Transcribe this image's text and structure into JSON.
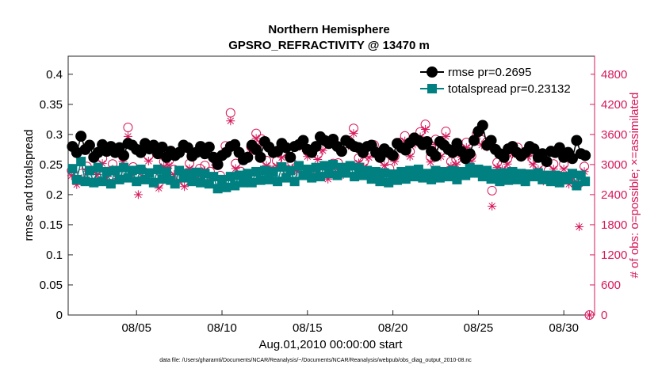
{
  "chart_data": {
    "type": "line",
    "title": "Northern Hemisphere",
    "subtitle": "GPSRO_REFRACTIVITY @ 13470 m",
    "xlabel": "Aug.01,2010 00:00:00 start",
    "ylabel": "rmse and totalspread",
    "y2label": "# of obs: o=possible; ×=assimilated",
    "footer": "data file: /Users/gharamti/Documents/NCAR/Reanalysis/~/Documents/NCAR/Reanalysis/webpub/obs_diag_output_2010-08.nc",
    "xlim": [
      1,
      31.8
    ],
    "ylim": [
      0,
      0.43
    ],
    "y2lim": [
      0,
      5160
    ],
    "x_ticks": [
      5,
      10,
      15,
      20,
      25,
      30
    ],
    "x_tick_labels": [
      "08/05",
      "08/10",
      "08/15",
      "08/20",
      "08/25",
      "08/30"
    ],
    "y_ticks": [
      0,
      0.05,
      0.1,
      0.15,
      0.2,
      0.25,
      0.3,
      0.35,
      0.4
    ],
    "y_tick_labels": [
      "0",
      "0.05",
      "0.1",
      "0.15",
      "0.2",
      "0.25",
      "0.3",
      "0.35",
      "0.4"
    ],
    "y2_ticks": [
      0,
      600,
      1200,
      1800,
      2400,
      3000,
      3600,
      4200,
      4800
    ],
    "y2_tick_labels": [
      "0",
      "600",
      "1200",
      "1800",
      "2400",
      "3000",
      "3600",
      "4200",
      "4800"
    ],
    "legend_position": "top-right",
    "colors": {
      "rmse": "#000000",
      "totalspread": "#008080",
      "obs": "#d6185b"
    },
    "series": [
      {
        "name": "rmse pr=0.2695",
        "axis": "left",
        "x": [
          1.25,
          1.5,
          1.75,
          2,
          2.25,
          2.5,
          2.75,
          3,
          3.25,
          3.5,
          3.75,
          4,
          4.25,
          4.5,
          4.75,
          5,
          5.25,
          5.5,
          5.75,
          6,
          6.25,
          6.5,
          6.75,
          7,
          7.25,
          7.5,
          7.75,
          8,
          8.25,
          8.5,
          8.75,
          9,
          9.25,
          9.5,
          9.75,
          10,
          10.25,
          10.5,
          10.75,
          11,
          11.25,
          11.5,
          11.75,
          12,
          12.25,
          12.5,
          12.75,
          13,
          13.25,
          13.5,
          13.75,
          14,
          14.25,
          14.5,
          14.75,
          15,
          15.25,
          15.5,
          15.75,
          16,
          16.25,
          16.5,
          16.75,
          17,
          17.25,
          17.5,
          17.75,
          18,
          18.25,
          18.5,
          18.75,
          19,
          19.25,
          19.5,
          19.75,
          20,
          20.25,
          20.5,
          20.75,
          21,
          21.25,
          21.5,
          21.75,
          22,
          22.25,
          22.5,
          22.75,
          23,
          23.25,
          23.5,
          23.75,
          24,
          24.25,
          24.5,
          24.75,
          25,
          25.25,
          25.5,
          25.75,
          26,
          26.25,
          26.5,
          26.75,
          27,
          27.25,
          27.5,
          27.75,
          28,
          28.25,
          28.5,
          28.75,
          29,
          29.25,
          29.5,
          29.75,
          30,
          30.25,
          30.5,
          30.75,
          31,
          31.25
        ],
        "values": [
          0.28,
          0.27,
          0.297,
          0.275,
          0.282,
          0.262,
          0.27,
          0.283,
          0.272,
          0.28,
          0.27,
          0.278,
          0.265,
          0.285,
          0.282,
          0.275,
          0.27,
          0.285,
          0.276,
          0.282,
          0.268,
          0.279,
          0.262,
          0.272,
          0.265,
          0.27,
          0.282,
          0.278,
          0.264,
          0.27,
          0.28,
          0.268,
          0.279,
          0.262,
          0.25,
          0.265,
          0.27,
          0.28,
          0.283,
          0.27,
          0.258,
          0.262,
          0.282,
          0.275,
          0.262,
          0.288,
          0.279,
          0.27,
          0.272,
          0.285,
          0.278,
          0.262,
          0.28,
          0.283,
          0.29,
          0.275,
          0.27,
          0.28,
          0.296,
          0.29,
          0.285,
          0.292,
          0.28,
          0.272,
          0.29,
          0.285,
          0.28,
          0.278,
          0.27,
          0.28,
          0.282,
          0.27,
          0.262,
          0.276,
          0.27,
          0.265,
          0.285,
          0.278,
          0.274,
          0.286,
          0.294,
          0.29,
          0.283,
          0.288,
          0.272,
          0.264,
          0.288,
          0.282,
          0.275,
          0.27,
          0.285,
          0.272,
          0.26,
          0.268,
          0.29,
          0.305,
          0.315,
          0.282,
          0.29,
          0.275,
          0.268,
          0.262,
          0.276,
          0.28,
          0.27,
          0.264,
          0.27,
          0.28,
          0.276,
          0.262,
          0.268,
          0.255,
          0.272,
          0.27,
          0.278,
          0.262,
          0.27,
          0.26,
          0.29,
          0.268,
          0.265
        ]
      },
      {
        "name": "totalspread pr=0.23132",
        "axis": "left",
        "x": [
          1.25,
          1.5,
          1.75,
          2,
          2.25,
          2.5,
          2.75,
          3,
          3.25,
          3.5,
          3.75,
          4,
          4.25,
          4.5,
          4.75,
          5,
          5.25,
          5.5,
          5.75,
          6,
          6.25,
          6.5,
          6.75,
          7,
          7.25,
          7.5,
          7.75,
          8,
          8.25,
          8.5,
          8.75,
          9,
          9.25,
          9.5,
          9.75,
          10,
          10.25,
          10.5,
          10.75,
          11,
          11.25,
          11.5,
          11.75,
          12,
          12.25,
          12.5,
          12.75,
          13,
          13.25,
          13.5,
          13.75,
          14,
          14.25,
          14.5,
          14.75,
          15,
          15.25,
          15.5,
          15.75,
          16,
          16.25,
          16.5,
          16.75,
          17,
          17.25,
          17.5,
          17.75,
          18,
          18.25,
          18.5,
          18.75,
          19,
          19.25,
          19.5,
          19.75,
          20,
          20.25,
          20.5,
          20.75,
          21,
          21.25,
          21.5,
          21.75,
          22,
          22.25,
          22.5,
          22.75,
          23,
          23.25,
          23.5,
          23.75,
          24,
          24.25,
          24.5,
          24.75,
          25,
          25.25,
          25.5,
          25.75,
          26,
          26.25,
          26.5,
          26.75,
          27,
          27.25,
          27.5,
          27.75,
          28,
          28.25,
          28.5,
          28.75,
          29,
          29.25,
          29.5,
          29.75,
          30,
          30.25,
          30.5,
          30.75,
          31,
          31.25
        ],
        "values": [
          0.243,
          0.225,
          0.255,
          0.222,
          0.24,
          0.22,
          0.245,
          0.222,
          0.238,
          0.218,
          0.24,
          0.225,
          0.245,
          0.228,
          0.24,
          0.222,
          0.242,
          0.225,
          0.236,
          0.22,
          0.242,
          0.226,
          0.238,
          0.224,
          0.218,
          0.24,
          0.228,
          0.235,
          0.222,
          0.237,
          0.22,
          0.235,
          0.218,
          0.23,
          0.21,
          0.225,
          0.212,
          0.23,
          0.215,
          0.232,
          0.22,
          0.235,
          0.22,
          0.238,
          0.224,
          0.24,
          0.225,
          0.238,
          0.222,
          0.246,
          0.228,
          0.24,
          0.222,
          0.248,
          0.232,
          0.242,
          0.228,
          0.245,
          0.23,
          0.248,
          0.235,
          0.25,
          0.232,
          0.245,
          0.236,
          0.248,
          0.23,
          0.245,
          0.232,
          0.24,
          0.226,
          0.238,
          0.222,
          0.236,
          0.22,
          0.234,
          0.224,
          0.238,
          0.226,
          0.24,
          0.23,
          0.242,
          0.228,
          0.235,
          0.225,
          0.24,
          0.228,
          0.238,
          0.23,
          0.24,
          0.225,
          0.238,
          0.232,
          0.245,
          0.236,
          0.242,
          0.23,
          0.24,
          0.226,
          0.235,
          0.222,
          0.236,
          0.224,
          0.238,
          0.225,
          0.235,
          0.222,
          0.234,
          0.23,
          0.236,
          0.225,
          0.232,
          0.222,
          0.232,
          0.22,
          0.23,
          0.225,
          0.235,
          0.215,
          0.232,
          0.222
        ]
      },
      {
        "name": "possible obs",
        "axis": "right",
        "marker": "circle",
        "x": [
          1.2,
          1.5,
          1.8,
          2.1,
          2.4,
          2.7,
          3,
          3.3,
          3.6,
          3.9,
          4.2,
          4.5,
          4.8,
          5.1,
          5.4,
          5.7,
          6,
          6.3,
          6.6,
          6.9,
          7.2,
          7.5,
          7.8,
          8.1,
          8.4,
          8.7,
          9,
          9.3,
          9.6,
          9.9,
          10.2,
          10.5,
          10.8,
          11.1,
          11.4,
          11.7,
          12,
          12.3,
          12.6,
          12.9,
          13.2,
          13.5,
          13.8,
          14.1,
          14.4,
          14.7,
          15,
          15.3,
          15.6,
          15.9,
          16.2,
          16.5,
          16.8,
          17.1,
          17.4,
          17.7,
          18,
          18.3,
          18.6,
          18.9,
          19.2,
          19.5,
          19.8,
          20.1,
          20.4,
          20.7,
          21,
          21.3,
          21.6,
          21.9,
          22.2,
          22.5,
          22.8,
          23.1,
          23.4,
          23.7,
          24,
          24.3,
          24.6,
          24.9,
          25.2,
          25.5,
          25.8,
          26.1,
          26.4,
          26.7,
          27,
          27.3,
          27.6,
          27.9,
          28.2,
          28.5,
          28.8,
          29.1,
          29.4,
          29.7,
          30,
          30.3,
          30.6,
          30.9,
          31.2,
          31.5
        ],
        "values": [
          2880,
          2700,
          2820,
          2960,
          2780,
          2900,
          3120,
          2860,
          3010,
          2820,
          3160,
          3740,
          2950,
          2780,
          2860,
          3170,
          2750,
          2630,
          3060,
          3080,
          2900,
          2780,
          2660,
          3020,
          2790,
          2920,
          2980,
          2860,
          3090,
          2780,
          3370,
          4030,
          3020,
          2860,
          2780,
          3350,
          3620,
          3510,
          3080,
          2880,
          3070,
          3240,
          2890,
          3030,
          2960,
          3440,
          3260,
          2880,
          3200,
          3380,
          2810,
          3020,
          3030,
          2900,
          3480,
          3720,
          3130,
          3050,
          3240,
          3390,
          2820,
          3080,
          2920,
          3160,
          3440,
          3570,
          3260,
          3510,
          3650,
          3800,
          3150,
          3500,
          3260,
          3660,
          3060,
          3100,
          3250,
          3440,
          3170,
          3610,
          3490,
          3450,
          2480,
          3040,
          3000,
          3110,
          3310,
          3340,
          2780,
          3260,
          3100,
          3000,
          2770,
          2880,
          3010,
          2780,
          3010,
          2710,
          2720,
          2630,
          2960,
          0
        ]
      },
      {
        "name": "assimilated obs",
        "axis": "right",
        "marker": "star",
        "x": [
          1.2,
          1.5,
          1.8,
          2.1,
          2.4,
          2.7,
          3,
          3.3,
          3.6,
          3.9,
          4.2,
          4.5,
          4.8,
          5.1,
          5.4,
          5.7,
          6,
          6.3,
          6.6,
          6.9,
          7.2,
          7.5,
          7.8,
          8.1,
          8.4,
          8.7,
          9,
          9.3,
          9.6,
          9.9,
          10.2,
          10.5,
          10.8,
          11.1,
          11.4,
          11.7,
          12,
          12.3,
          12.6,
          12.9,
          13.2,
          13.5,
          13.8,
          14.1,
          14.4,
          14.7,
          15,
          15.3,
          15.6,
          15.9,
          16.2,
          16.5,
          16.8,
          17.1,
          17.4,
          17.7,
          18,
          18.3,
          18.6,
          18.9,
          19.2,
          19.5,
          19.8,
          20.1,
          20.4,
          20.7,
          21,
          21.3,
          21.6,
          21.9,
          22.2,
          22.5,
          22.8,
          23.1,
          23.4,
          23.7,
          24,
          24.3,
          24.6,
          24.9,
          25.2,
          25.5,
          25.8,
          26.1,
          26.4,
          26.7,
          27,
          27.3,
          27.6,
          27.9,
          28.2,
          28.5,
          28.8,
          29.1,
          29.4,
          29.7,
          30,
          30.3,
          30.6,
          30.9,
          31.2,
          31.5
        ],
        "values": [
          2780,
          2600,
          2720,
          2860,
          2680,
          2800,
          3020,
          2760,
          2910,
          2720,
          3060,
          3560,
          2850,
          2400,
          2760,
          3070,
          2650,
          2530,
          2960,
          2980,
          2800,
          2680,
          2560,
          2920,
          2690,
          2820,
          2880,
          2760,
          2990,
          2680,
          3270,
          3870,
          2920,
          2760,
          2680,
          3250,
          3520,
          3410,
          2980,
          2780,
          2970,
          3140,
          2790,
          2930,
          2860,
          3340,
          3160,
          2780,
          3100,
          3280,
          2710,
          2920,
          2930,
          2800,
          3380,
          3620,
          3030,
          2950,
          3140,
          3290,
          2720,
          2980,
          2820,
          3060,
          3340,
          3470,
          3160,
          3410,
          3550,
          3700,
          3050,
          3400,
          3160,
          3560,
          2960,
          3000,
          3150,
          3340,
          3070,
          3510,
          3390,
          3350,
          2170,
          2940,
          2900,
          3010,
          3210,
          3240,
          2680,
          3160,
          3000,
          2900,
          2670,
          2780,
          2910,
          2680,
          2910,
          2610,
          2620,
          1760,
          2860,
          0
        ]
      }
    ]
  }
}
